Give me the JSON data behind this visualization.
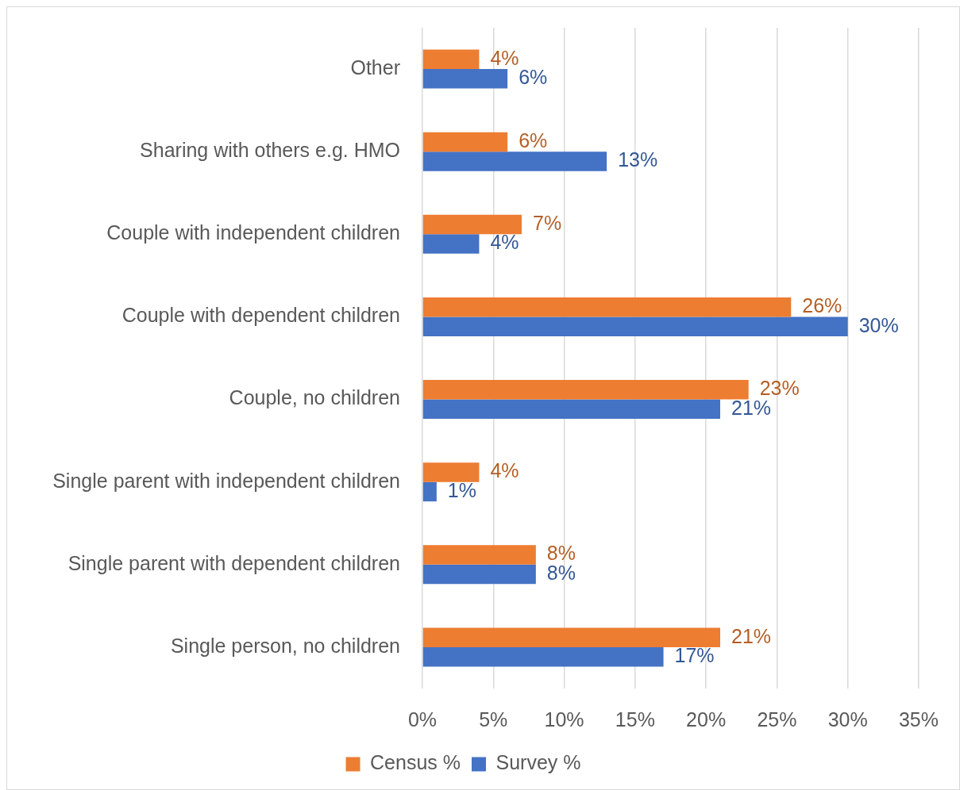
{
  "chart_data": {
    "type": "bar",
    "orientation": "horizontal",
    "categories": [
      "Other",
      "Sharing with others e.g. HMO",
      "Couple with independent children",
      "Couple with dependent children",
      "Couple, no children",
      "Single parent with independent children",
      "Single parent with dependent children",
      "Single person, no children"
    ],
    "series": [
      {
        "name": "Census %",
        "color": "#ed7d31",
        "values": [
          4,
          6,
          7,
          26,
          23,
          4,
          8,
          21
        ],
        "value_labels": [
          "4%",
          "6%",
          "7%",
          "26%",
          "23%",
          "4%",
          "8%",
          "21%"
        ]
      },
      {
        "name": "Survey %",
        "color": "#4472c4",
        "values": [
          6,
          13,
          4,
          30,
          21,
          1,
          8,
          17
        ],
        "value_labels": [
          "6%",
          "13%",
          "4%",
          "30%",
          "21%",
          "1%",
          "8%",
          "17%"
        ]
      }
    ],
    "xlim": [
      0,
      35
    ],
    "xticks": [
      {
        "value": 0,
        "label": "0%"
      },
      {
        "value": 5,
        "label": "5%"
      },
      {
        "value": 10,
        "label": "10%"
      },
      {
        "value": 15,
        "label": "15%"
      },
      {
        "value": 20,
        "label": "20%"
      },
      {
        "value": 25,
        "label": "25%"
      },
      {
        "value": 30,
        "label": "30%"
      },
      {
        "value": 35,
        "label": "35%"
      }
    ],
    "grid": "x",
    "legend": "bottom"
  }
}
